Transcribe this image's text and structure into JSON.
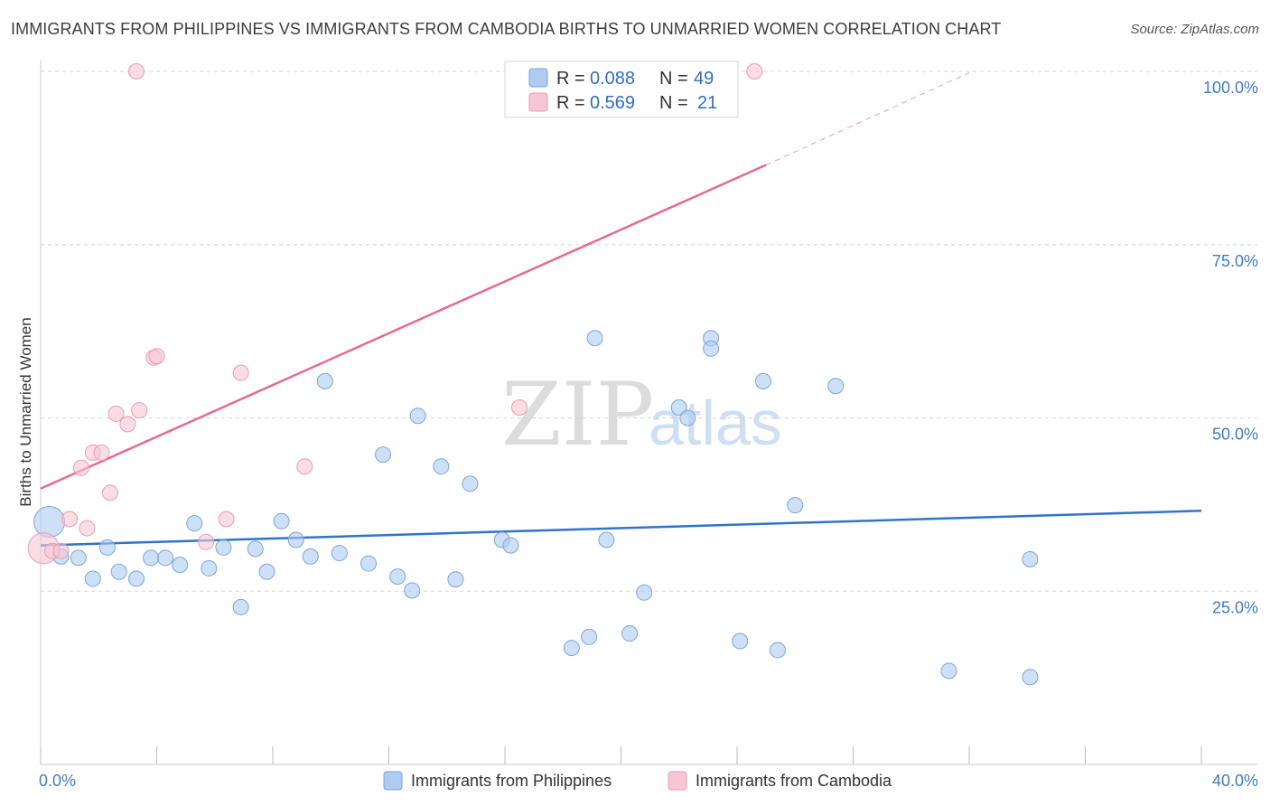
{
  "header": {
    "title": "IMMIGRANTS FROM PHILIPPINES VS IMMIGRANTS FROM CAMBODIA BIRTHS TO UNMARRIED WOMEN CORRELATION CHART",
    "source": "Source: ZipAtlas.com"
  },
  "watermark": {
    "zip": "ZIP",
    "atlas": "atlas"
  },
  "colors": {
    "philippines_fill": "#aecbf0",
    "philippines_stroke": "#7aa6de",
    "philippines_line": "#2f74cc",
    "cambodia_fill": "#f7c6d4",
    "cambodia_stroke": "#ee9ab3",
    "cambodia_line": "#e46a92",
    "tick_label": "#3d7cc9",
    "grid": "#d6d6d6"
  },
  "legend": {
    "rows": [
      {
        "r_label": "R =",
        "r_value": "0.088",
        "n_label": "N =",
        "n_value": "49"
      },
      {
        "r_label": "R =",
        "r_value": "0.569",
        "n_label": "N =",
        "n_value": "21"
      }
    ]
  },
  "chart_data": {
    "type": "scatter",
    "title": "IMMIGRANTS FROM PHILIPPINES VS IMMIGRANTS FROM CAMBODIA BIRTHS TO UNMARRIED WOMEN CORRELATION CHART",
    "xlabel": "",
    "ylabel": "Births to Unmarried Women",
    "xlim": [
      0,
      40
    ],
    "ylim": [
      0,
      100
    ],
    "x_tick_labels": [
      "0.0%",
      "40.0%"
    ],
    "y_ticks": [
      25,
      50,
      75,
      100
    ],
    "y_tick_labels": [
      "25.0%",
      "50.0%",
      "75.0%",
      "100.0%"
    ],
    "series": [
      {
        "name": "Immigrants from Philippines",
        "r": 0.088,
        "n": 49,
        "trend": {
          "x0": 0,
          "y0": 31.6,
          "x1": 40,
          "y1": 36.6
        },
        "points": [
          {
            "x": 0.3,
            "y": 35.0,
            "big": true
          },
          {
            "x": 0.7,
            "y": 30.0
          },
          {
            "x": 1.3,
            "y": 29.8
          },
          {
            "x": 1.8,
            "y": 26.8
          },
          {
            "x": 2.3,
            "y": 31.3
          },
          {
            "x": 2.7,
            "y": 27.8
          },
          {
            "x": 3.3,
            "y": 26.8
          },
          {
            "x": 3.8,
            "y": 29.8
          },
          {
            "x": 4.3,
            "y": 29.8
          },
          {
            "x": 4.8,
            "y": 28.8
          },
          {
            "x": 5.3,
            "y": 34.8
          },
          {
            "x": 5.8,
            "y": 28.3
          },
          {
            "x": 6.3,
            "y": 31.3
          },
          {
            "x": 6.9,
            "y": 22.7
          },
          {
            "x": 7.4,
            "y": 31.1
          },
          {
            "x": 7.8,
            "y": 27.8
          },
          {
            "x": 8.3,
            "y": 35.1
          },
          {
            "x": 8.8,
            "y": 32.4
          },
          {
            "x": 9.3,
            "y": 30.0
          },
          {
            "x": 9.8,
            "y": 55.3
          },
          {
            "x": 10.3,
            "y": 30.5
          },
          {
            "x": 11.3,
            "y": 29.0
          },
          {
            "x": 11.8,
            "y": 44.7
          },
          {
            "x": 12.3,
            "y": 27.1
          },
          {
            "x": 12.8,
            "y": 25.1
          },
          {
            "x": 13.0,
            "y": 50.3
          },
          {
            "x": 13.8,
            "y": 43.0
          },
          {
            "x": 14.3,
            "y": 26.7
          },
          {
            "x": 14.8,
            "y": 40.5
          },
          {
            "x": 15.9,
            "y": 32.4
          },
          {
            "x": 16.2,
            "y": 31.6
          },
          {
            "x": 18.3,
            "y": 16.8
          },
          {
            "x": 18.9,
            "y": 18.4
          },
          {
            "x": 19.1,
            "y": 61.5
          },
          {
            "x": 19.5,
            "y": 32.4
          },
          {
            "x": 20.3,
            "y": 18.9
          },
          {
            "x": 20.8,
            "y": 24.8
          },
          {
            "x": 22.0,
            "y": 51.5
          },
          {
            "x": 22.3,
            "y": 50.0
          },
          {
            "x": 23.1,
            "y": 61.5
          },
          {
            "x": 23.1,
            "y": 60.0
          },
          {
            "x": 24.1,
            "y": 17.8
          },
          {
            "x": 24.9,
            "y": 55.3
          },
          {
            "x": 25.4,
            "y": 16.5
          },
          {
            "x": 26.0,
            "y": 37.4
          },
          {
            "x": 27.4,
            "y": 54.6
          },
          {
            "x": 31.3,
            "y": 13.5
          },
          {
            "x": 34.1,
            "y": 12.6
          },
          {
            "x": 34.1,
            "y": 29.6
          }
        ]
      },
      {
        "name": "Immigrants from Cambodia",
        "r": 0.569,
        "n": 21,
        "trend": {
          "x0": 0,
          "y0": 39.8,
          "x1": 25,
          "y1": 86.5
        },
        "trend_dashed": {
          "x0": 25,
          "y0": 86.5,
          "x1": 32,
          "y1": 99.8
        },
        "points": [
          {
            "x": 0.1,
            "y": 31.2,
            "big": true
          },
          {
            "x": 0.4,
            "y": 30.8
          },
          {
            "x": 0.7,
            "y": 30.8
          },
          {
            "x": 1.0,
            "y": 35.4
          },
          {
            "x": 1.4,
            "y": 42.8
          },
          {
            "x": 1.6,
            "y": 34.1
          },
          {
            "x": 1.8,
            "y": 45.0
          },
          {
            "x": 2.1,
            "y": 45.0
          },
          {
            "x": 2.4,
            "y": 39.2
          },
          {
            "x": 2.6,
            "y": 50.6
          },
          {
            "x": 3.0,
            "y": 49.1
          },
          {
            "x": 3.3,
            "y": 100.0
          },
          {
            "x": 3.4,
            "y": 51.1
          },
          {
            "x": 3.9,
            "y": 58.7
          },
          {
            "x": 4.0,
            "y": 58.9
          },
          {
            "x": 5.7,
            "y": 32.1
          },
          {
            "x": 6.4,
            "y": 35.4
          },
          {
            "x": 6.9,
            "y": 56.5
          },
          {
            "x": 9.1,
            "y": 43.0
          },
          {
            "x": 16.5,
            "y": 51.5
          },
          {
            "x": 24.6,
            "y": 100.0
          }
        ]
      }
    ]
  }
}
